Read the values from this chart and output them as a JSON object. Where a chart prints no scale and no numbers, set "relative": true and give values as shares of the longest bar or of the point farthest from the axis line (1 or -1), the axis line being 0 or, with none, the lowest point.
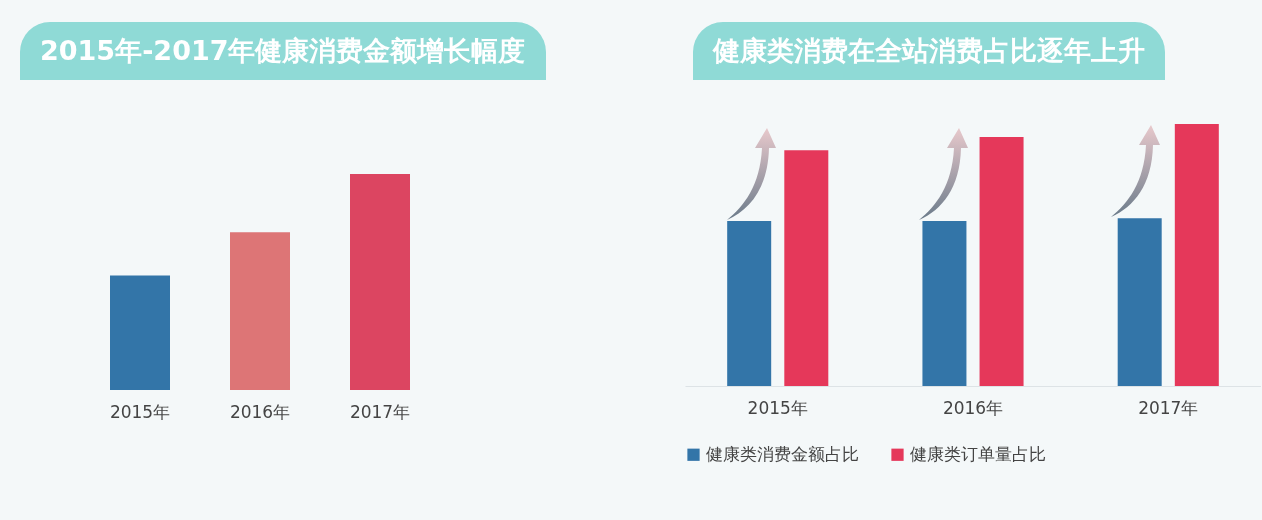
{
  "chart_data": [
    {
      "type": "bar",
      "title": "2015年-2017年健康消费金额增长幅度",
      "relative": true,
      "categories": [
        "2015年",
        "2016年",
        "2017年"
      ],
      "values": [
        0.53,
        0.73,
        1
      ],
      "colors": [
        "#3375a8",
        "#dd7576",
        "#dc4561"
      ],
      "legend": false
    },
    {
      "type": "bar",
      "title": "健康类消费在全站消费占比逐年上升",
      "relative": true,
      "categories": [
        "2015年",
        "2016年",
        "2017年"
      ],
      "legend": "bottom",
      "series": [
        {
          "name": "健康类消费金额占比",
          "color": "#3375a8",
          "values": [
            0.63,
            0.63,
            0.64
          ]
        },
        {
          "name": "健康类订单量占比",
          "color": "#e5385a",
          "values": [
            0.9,
            0.95,
            1
          ]
        }
      ]
    }
  ]
}
